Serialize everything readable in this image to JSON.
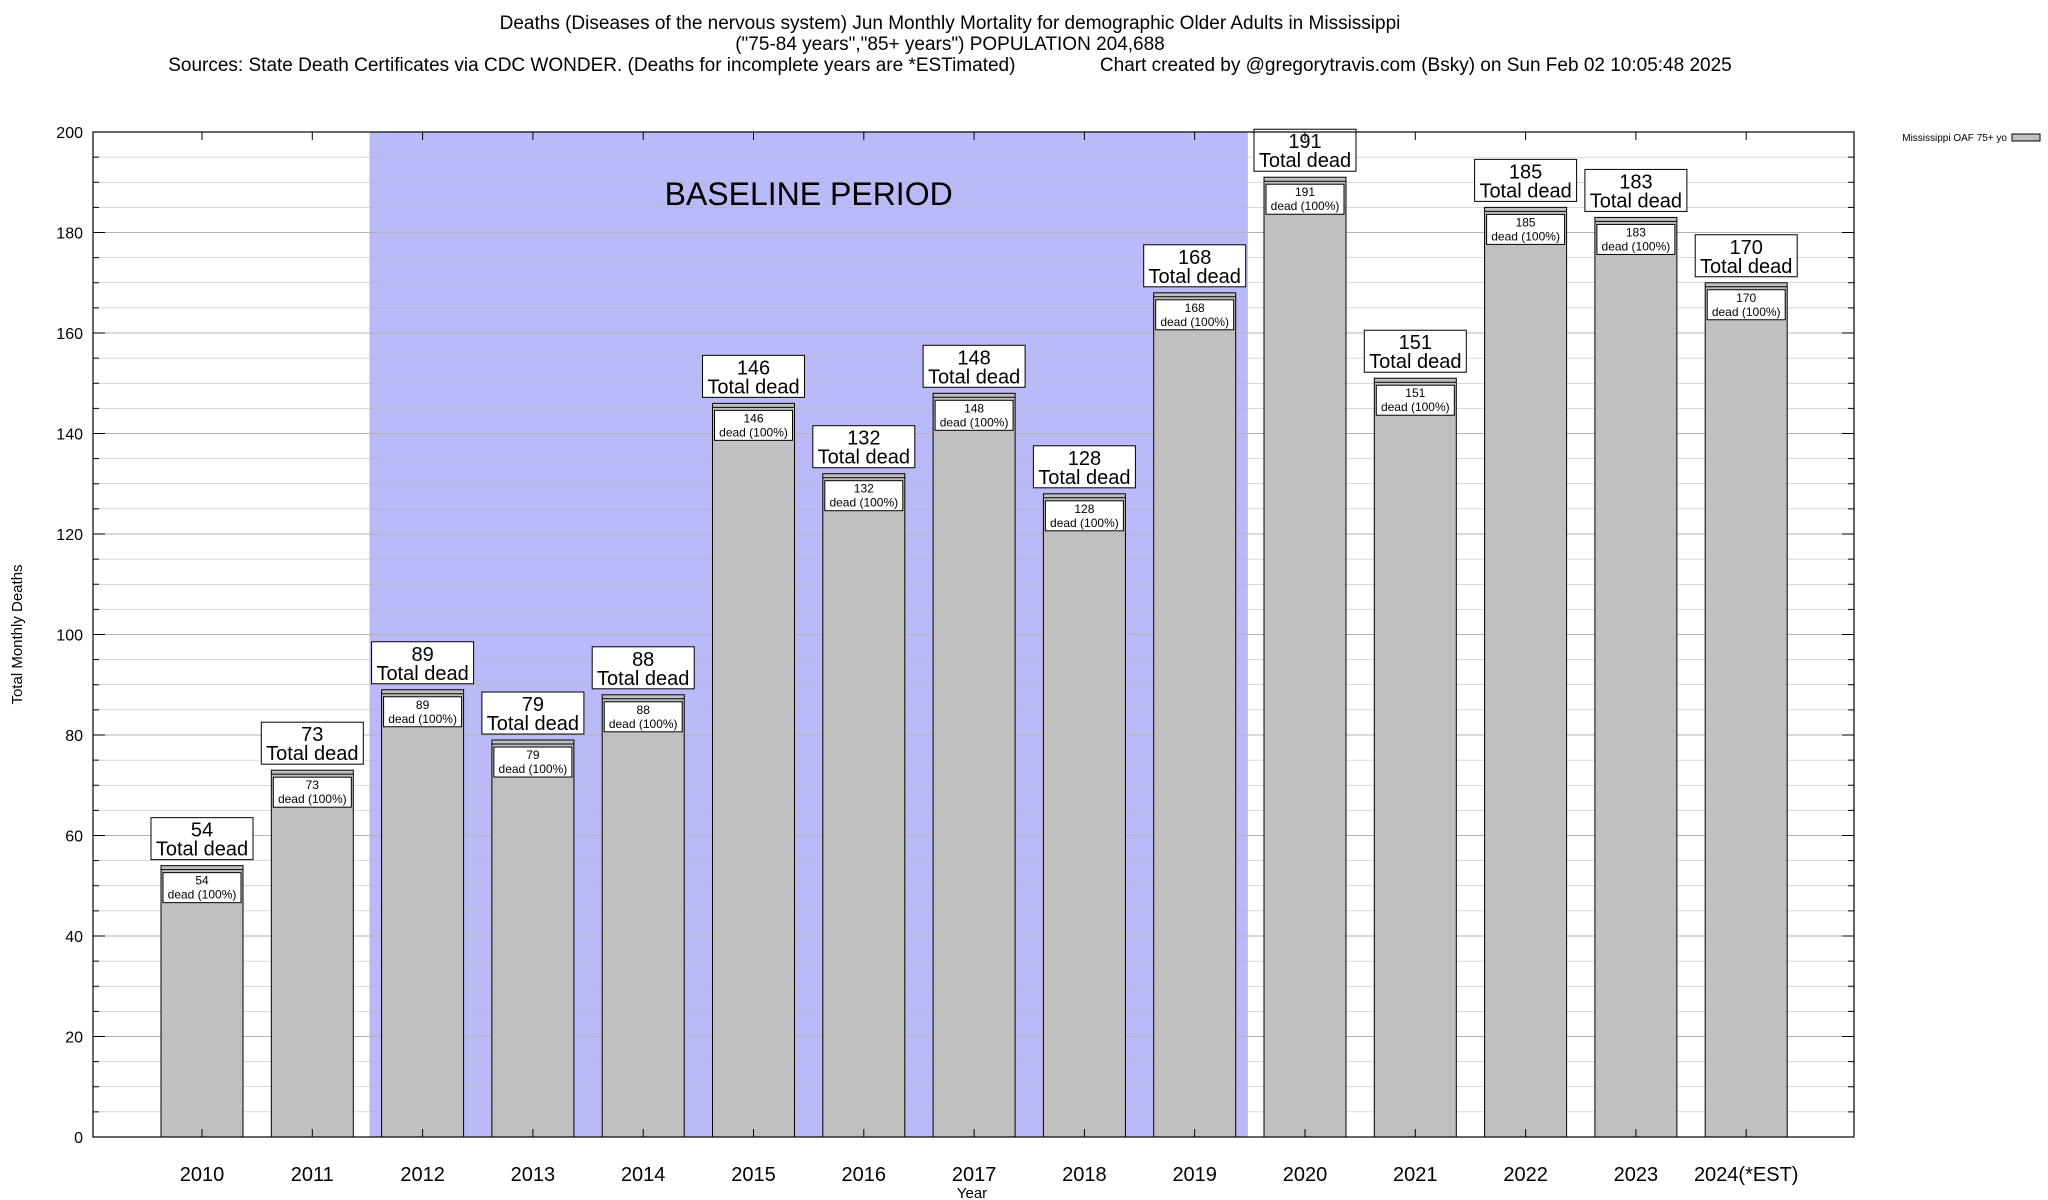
{
  "header": {
    "title_line1": "Deaths (Diseases of the nervous system) Jun Monthly Mortality for demographic Older Adults in Mississippi",
    "title_line2": "(\"75-84 years\",\"85+ years\") POPULATION 204,688",
    "sources": "Sources: State Death Certificates via CDC WONDER. (Deaths for incomplete years are *ESTimated)",
    "credit": "Chart created by @gregorytravis.com (Bsky) on Sun Feb 02 10:05:48 2025"
  },
  "colors": {
    "bar_fill": "#c0c0c0",
    "baseline_fill": "#babaf8",
    "grid": "#b4b4b4"
  },
  "chart_data": {
    "type": "bar",
    "xlabel": "Year",
    "ylabel": "Total Monthly Deaths",
    "ylim": [
      0,
      200
    ],
    "yticks": [
      0,
      20,
      40,
      60,
      80,
      100,
      120,
      140,
      160,
      180,
      200
    ],
    "grid": true,
    "categories": [
      "2010",
      "2011",
      "2012",
      "2013",
      "2014",
      "2015",
      "2016",
      "2017",
      "2018",
      "2019",
      "2020",
      "2021",
      "2022",
      "2023",
      "2024(*EST)"
    ],
    "series": [
      {
        "name": "Mississippi OAF 75+ yo",
        "values": [
          54,
          73,
          89,
          79,
          88,
          146,
          132,
          148,
          128,
          168,
          191,
          151,
          185,
          183,
          170
        ]
      }
    ],
    "legend": {
      "placement": "top-right",
      "label": "Mississippi OAF 75+ yo"
    },
    "baseline": {
      "label": "BASELINE PERIOD",
      "start": "2012",
      "end": "2019"
    },
    "bar_label_line2": "Total dead",
    "inner_label_line2": "dead (100%)"
  }
}
